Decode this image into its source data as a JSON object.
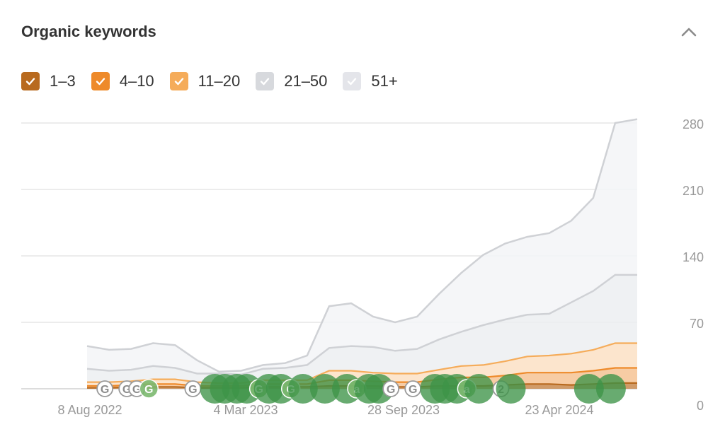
{
  "header": {
    "title": "Organic keywords"
  },
  "legend": [
    {
      "label": "1–3",
      "color": "#b86a1f",
      "checked": true
    },
    {
      "label": "4–10",
      "color": "#ee8a2a",
      "checked": true
    },
    {
      "label": "11–20",
      "color": "#f5ac5a",
      "checked": true
    },
    {
      "label": "21–50",
      "color": "#d7d9dd",
      "checked": true
    },
    {
      "label": "51+",
      "color": "#e4e5ea",
      "checked": true
    }
  ],
  "chart_data": {
    "type": "area",
    "stacked": true,
    "x_tick_labels": [
      "8 Aug 2022",
      "4 Mar 2023",
      "28 Sep 2023",
      "23 Apr 2024"
    ],
    "y_ticks": [
      0,
      70,
      140,
      210,
      280
    ],
    "ylim": [
      0,
      280
    ],
    "grid": true,
    "y_axis_side": "right",
    "x": [
      "2022-07",
      "2022-08",
      "2022-09",
      "2022-10",
      "2022-11",
      "2022-12",
      "2023-01",
      "2023-02",
      "2023-03",
      "2023-04",
      "2023-05",
      "2023-06",
      "2023-07",
      "2023-08",
      "2023-09",
      "2023-10",
      "2023-11",
      "2023-12",
      "2024-01",
      "2024-02",
      "2024-03",
      "2024-04",
      "2024-05",
      "2024-06",
      "2024-07",
      "2024-08"
    ],
    "series": [
      {
        "name": "1–3",
        "color": "#b86a1f",
        "values": [
          1,
          1,
          2,
          2,
          2,
          1,
          1,
          1,
          2,
          2,
          2,
          3,
          3,
          3,
          2,
          2,
          3,
          3,
          3,
          4,
          5,
          5,
          4,
          5,
          6,
          6
        ]
      },
      {
        "name": "4–10",
        "color": "#ee8a2a",
        "values": [
          2,
          2,
          2,
          3,
          3,
          2,
          2,
          2,
          3,
          3,
          3,
          6,
          6,
          5,
          5,
          5,
          7,
          9,
          9,
          10,
          12,
          12,
          13,
          14,
          16,
          16
        ]
      },
      {
        "name": "11–20",
        "color": "#f5ac5a",
        "values": [
          4,
          4,
          4,
          5,
          5,
          4,
          3,
          3,
          4,
          4,
          4,
          10,
          10,
          9,
          9,
          9,
          10,
          12,
          13,
          15,
          17,
          18,
          20,
          22,
          26,
          26
        ]
      },
      {
        "name": "21–50",
        "color": "#d7d9dd",
        "values": [
          14,
          12,
          12,
          14,
          12,
          9,
          10,
          9,
          12,
          13,
          16,
          24,
          26,
          27,
          24,
          26,
          32,
          36,
          42,
          44,
          44,
          44,
          54,
          62,
          72,
          72
        ]
      },
      {
        "name": "51+",
        "color": "#e4e5ea",
        "values": [
          24,
          22,
          22,
          24,
          24,
          14,
          2,
          4,
          4,
          5,
          10,
          44,
          45,
          32,
          30,
          34,
          48,
          62,
          74,
          80,
          82,
          85,
          86,
          98,
          160,
          164
        ]
      }
    ],
    "totals_approx": [
      45,
      41,
      42,
      48,
      46,
      30,
      18,
      19,
      25,
      27,
      35,
      87,
      90,
      76,
      70,
      76,
      100,
      122,
      141,
      153,
      160,
      164,
      177,
      201,
      280,
      284
    ],
    "annotations": [
      {
        "date": "2022-08",
        "letter": "G",
        "type": "google"
      },
      {
        "date": "2022-09",
        "letter": "G",
        "type": "google"
      },
      {
        "date": "2022-09",
        "letter": "G",
        "type": "google"
      },
      {
        "date": "2022-10",
        "letter": "G",
        "type": "google-green"
      },
      {
        "date": "2022-12",
        "letter": "G",
        "type": "google"
      },
      {
        "date": "2023-01",
        "letter": "",
        "type": "event"
      },
      {
        "date": "2023-01",
        "letter": "",
        "type": "event"
      },
      {
        "date": "2023-02",
        "letter": "",
        "type": "event"
      },
      {
        "date": "2023-02",
        "letter": "",
        "type": "event"
      },
      {
        "date": "2023-03",
        "letter": "G",
        "type": "google-green"
      },
      {
        "date": "2023-03",
        "letter": "",
        "type": "event"
      },
      {
        "date": "2023-04",
        "letter": "",
        "type": "event"
      },
      {
        "date": "2023-04",
        "letter": "G",
        "type": "google-green"
      },
      {
        "date": "2023-05",
        "letter": "",
        "type": "event"
      },
      {
        "date": "2023-06",
        "letter": "",
        "type": "event"
      },
      {
        "date": "2023-07",
        "letter": "",
        "type": "event"
      },
      {
        "date": "2023-07",
        "letter": "a",
        "type": "letter-green"
      },
      {
        "date": "2023-08",
        "letter": "",
        "type": "event"
      },
      {
        "date": "2023-08",
        "letter": "",
        "type": "event"
      },
      {
        "date": "2023-09",
        "letter": "G",
        "type": "google"
      },
      {
        "date": "2023-10",
        "letter": "G",
        "type": "google"
      },
      {
        "date": "2023-11",
        "letter": "",
        "type": "event"
      },
      {
        "date": "2023-11",
        "letter": "",
        "type": "event"
      },
      {
        "date": "2023-12",
        "letter": "",
        "type": "event"
      },
      {
        "date": "2023-12",
        "letter": "a",
        "type": "letter-green"
      },
      {
        "date": "2024-01",
        "letter": "",
        "type": "event"
      },
      {
        "date": "2024-02",
        "letter": "2",
        "type": "number"
      },
      {
        "date": "2024-02",
        "letter": "",
        "type": "event"
      },
      {
        "date": "2024-06",
        "letter": "",
        "type": "event"
      },
      {
        "date": "2024-07",
        "letter": "",
        "type": "event"
      }
    ]
  }
}
